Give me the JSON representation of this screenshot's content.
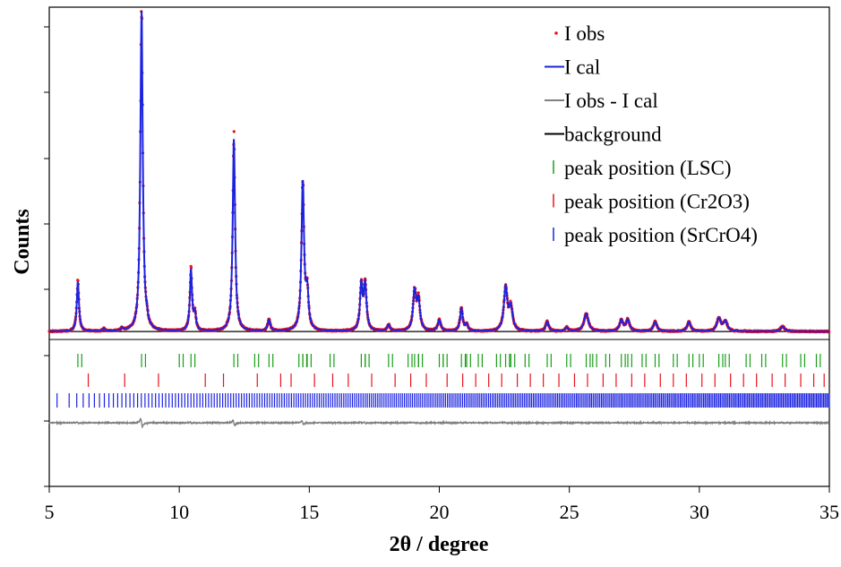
{
  "chart_data": {
    "type": "scatter",
    "title": "",
    "xlabel": "2θ / degree",
    "ylabel": "Counts",
    "xlim": [
      5,
      35
    ],
    "x_ticks": [
      "5",
      "10",
      "15",
      "20",
      "25",
      "30",
      "35"
    ],
    "y_tick_labels": "none",
    "grid": false,
    "legend_position": "top-right",
    "colors": {
      "observed": "#e8141c",
      "calculated": "#1c23e0",
      "difference": "#808080",
      "background": "#000000",
      "tick_lsc": "#1a9e1a",
      "tick_cr2o3": "#e8141c",
      "tick_srcro4": "#1c23e0"
    },
    "legend": [
      {
        "label": "I obs",
        "marker": "dot",
        "color": "#e8141c"
      },
      {
        "label": "I cal",
        "marker": "line",
        "color": "#1c23e0"
      },
      {
        "label": "I obs - I cal",
        "marker": "line",
        "color": "#808080"
      },
      {
        "label": "background",
        "marker": "line",
        "color": "#000000"
      },
      {
        "label": "peak position (LSC)",
        "marker": "tick",
        "color": "#1a9e1a"
      },
      {
        "label": "peak position (Cr2O3)",
        "marker": "tick",
        "color": "#e8141c"
      },
      {
        "label": "peak position (SrCrO4)",
        "marker": "tick",
        "color": "#1c23e0"
      }
    ],
    "peaks": [
      {
        "x": 6.1,
        "height": 0.155,
        "width": 0.05
      },
      {
        "x": 7.1,
        "height": 0.008,
        "width": 0.05
      },
      {
        "x": 7.8,
        "height": 0.008,
        "width": 0.05
      },
      {
        "x": 8.55,
        "height": 1.0,
        "width": 0.055
      },
      {
        "x": 8.75,
        "height": 0.02,
        "width": 0.05
      },
      {
        "x": 10.45,
        "height": 0.19,
        "width": 0.05
      },
      {
        "x": 10.6,
        "height": 0.05,
        "width": 0.05
      },
      {
        "x": 12.1,
        "height": 0.6,
        "width": 0.055
      },
      {
        "x": 13.45,
        "height": 0.035,
        "width": 0.06
      },
      {
        "x": 14.75,
        "height": 0.46,
        "width": 0.06
      },
      {
        "x": 14.92,
        "height": 0.11,
        "width": 0.06
      },
      {
        "x": 17.0,
        "height": 0.14,
        "width": 0.06
      },
      {
        "x": 17.15,
        "height": 0.14,
        "width": 0.06
      },
      {
        "x": 18.05,
        "height": 0.02,
        "width": 0.06
      },
      {
        "x": 19.05,
        "height": 0.12,
        "width": 0.07
      },
      {
        "x": 19.2,
        "height": 0.09,
        "width": 0.07
      },
      {
        "x": 20.0,
        "height": 0.035,
        "width": 0.07
      },
      {
        "x": 20.85,
        "height": 0.07,
        "width": 0.06
      },
      {
        "x": 21.05,
        "height": 0.02,
        "width": 0.06
      },
      {
        "x": 22.55,
        "height": 0.135,
        "width": 0.08
      },
      {
        "x": 22.75,
        "height": 0.07,
        "width": 0.08
      },
      {
        "x": 24.15,
        "height": 0.03,
        "width": 0.07
      },
      {
        "x": 24.9,
        "height": 0.012,
        "width": 0.07
      },
      {
        "x": 25.65,
        "height": 0.055,
        "width": 0.1
      },
      {
        "x": 27.0,
        "height": 0.035,
        "width": 0.08
      },
      {
        "x": 27.25,
        "height": 0.035,
        "width": 0.08
      },
      {
        "x": 28.3,
        "height": 0.03,
        "width": 0.08
      },
      {
        "x": 29.6,
        "height": 0.03,
        "width": 0.08
      },
      {
        "x": 30.75,
        "height": 0.04,
        "width": 0.09
      },
      {
        "x": 31.0,
        "height": 0.03,
        "width": 0.09
      },
      {
        "x": 33.2,
        "height": 0.015,
        "width": 0.1
      }
    ],
    "background_level": 0.008,
    "peak_position_ticks": {
      "LSC": [
        6.1,
        8.55,
        10.0,
        10.45,
        12.1,
        12.9,
        13.45,
        14.6,
        14.75,
        14.92,
        15.8,
        17.0,
        17.15,
        18.05,
        18.8,
        19.05,
        19.2,
        20.0,
        20.15,
        20.85,
        21.05,
        21.5,
        22.2,
        22.55,
        22.75,
        23.3,
        24.15,
        24.9,
        25.65,
        25.9,
        26.4,
        27.0,
        27.25,
        27.8,
        28.3,
        29.0,
        29.6,
        30.0,
        30.75,
        31.0,
        31.8,
        32.4,
        33.2,
        33.9,
        34.5
      ],
      "Cr2O3": [
        6.5,
        7.9,
        9.2,
        11.0,
        11.7,
        13.0,
        13.9,
        14.3,
        15.2,
        15.9,
        16.5,
        17.4,
        18.3,
        18.9,
        19.5,
        20.3,
        20.9,
        21.4,
        21.9,
        22.4,
        23.0,
        23.5,
        24.0,
        24.6,
        25.2,
        25.7,
        26.3,
        26.8,
        27.4,
        27.9,
        28.5,
        29.0,
        29.5,
        30.1,
        30.6,
        31.2,
        31.7,
        32.2,
        32.8,
        33.3,
        33.9,
        34.4,
        34.8
      ],
      "SrCrO4_start": 5.3,
      "SrCrO4_dense_from": 23.0,
      "SrCrO4_count": 380
    }
  }
}
